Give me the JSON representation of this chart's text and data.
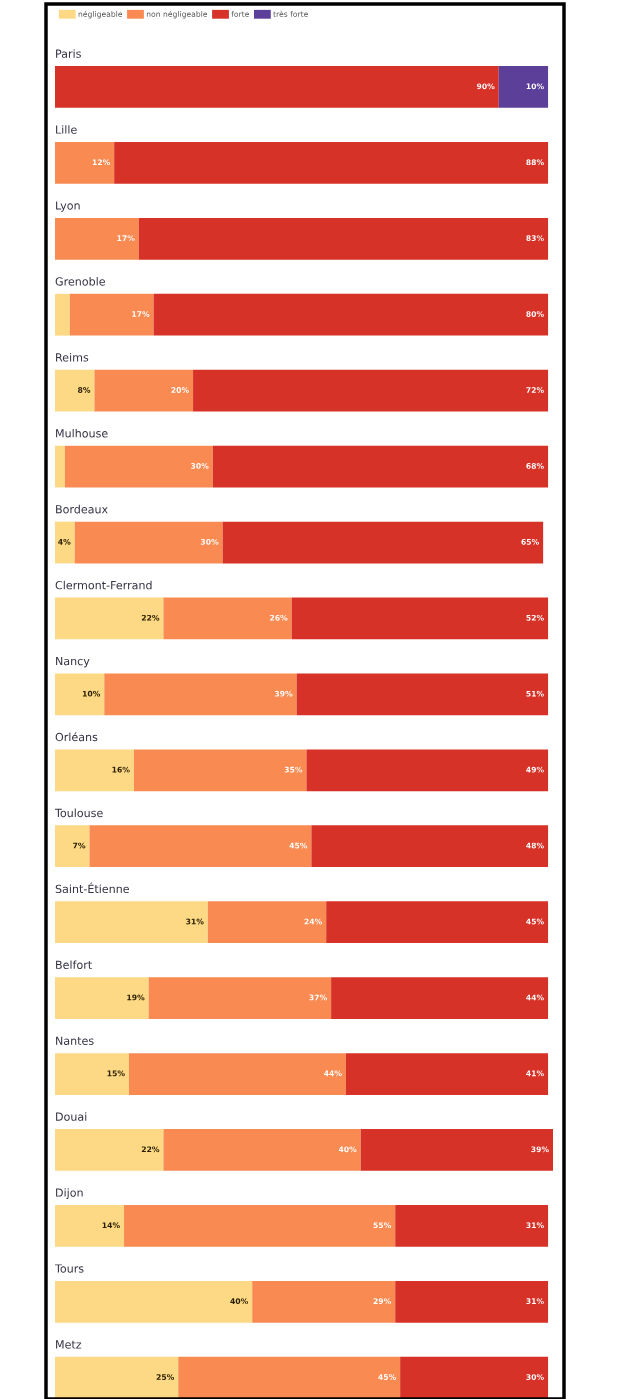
{
  "chart_data": {
    "type": "bar",
    "orientation": "horizontal",
    "stacked": true,
    "legend": "top left",
    "categories": [
      "Paris",
      "Lille",
      "Lyon",
      "Grenoble",
      "Reims",
      "Mulhouse",
      "Bordeaux",
      "Clermont-Ferrand",
      "Nancy",
      "Orléans",
      "Toulouse",
      "Saint-Étienne",
      "Belfort",
      "Nantes",
      "Douai",
      "Dijon",
      "Tours",
      "Metz"
    ],
    "series": [
      {
        "name": "négligeable",
        "color": "#fdd985",
        "values": [
          null,
          null,
          null,
          3,
          8,
          2,
          4,
          22,
          10,
          16,
          7,
          31,
          19,
          15,
          22,
          14,
          40,
          25
        ],
        "value_labels": [
          null,
          null,
          null,
          null,
          "8%",
          null,
          "4%",
          "22%",
          "10%",
          "16%",
          "7%",
          "31%",
          "19%",
          "15%",
          "22%",
          "14%",
          "40%",
          "25%"
        ]
      },
      {
        "name": "non négligeable",
        "color": "#f98b52",
        "values": [
          null,
          12,
          17,
          17,
          20,
          30,
          30,
          26,
          39,
          35,
          45,
          24,
          37,
          44,
          40,
          55,
          29,
          45
        ],
        "value_labels": [
          null,
          "12%",
          "17%",
          "17%",
          "20%",
          "30%",
          "30%",
          "26%",
          "39%",
          "35%",
          "45%",
          "24%",
          "37%",
          "44%",
          "40%",
          "55%",
          "29%",
          "45%"
        ]
      },
      {
        "name": "forte",
        "color": "#d63227",
        "values": [
          90,
          88,
          83,
          80,
          72,
          68,
          65,
          52,
          51,
          49,
          48,
          45,
          44,
          41,
          39,
          31,
          31,
          30
        ],
        "value_labels": [
          "90%",
          "88%",
          "83%",
          "80%",
          "72%",
          "68%",
          "65%",
          "52%",
          "51%",
          "49%",
          "48%",
          "45%",
          "44%",
          "41%",
          "39%",
          "31%",
          "31%",
          "30%"
        ]
      },
      {
        "name": "très forte",
        "color": "#5c3f99",
        "values": [
          10,
          null,
          null,
          null,
          null,
          null,
          null,
          null,
          null,
          null,
          null,
          null,
          null,
          null,
          null,
          null,
          null,
          null
        ],
        "value_labels": [
          "10%",
          null,
          null,
          null,
          null,
          null,
          null,
          null,
          null,
          null,
          null,
          null,
          null,
          null,
          null,
          null,
          null,
          null
        ]
      }
    ]
  }
}
